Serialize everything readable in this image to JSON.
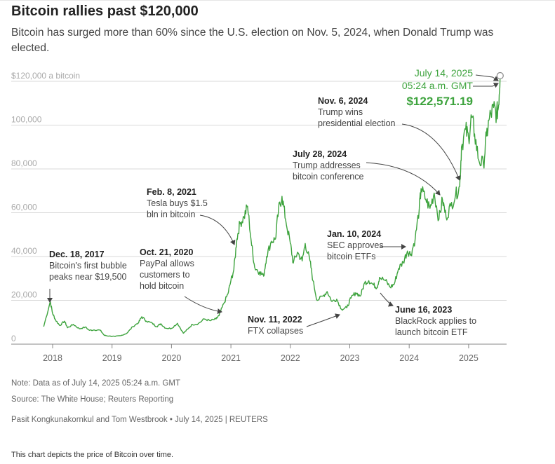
{
  "header": {
    "title": "Bitcoin rallies past $120,000",
    "subtitle": "Bitcoin has surged more than 60% since the U.S. election on Nov. 5, 2024, when Donald Trump was elected."
  },
  "chart_data": {
    "type": "line",
    "title": "Bitcoin rallies past $120,000",
    "series": [
      {
        "name": "Bitcoin price",
        "color": "#3da33d",
        "points": [
          [
            2017.85,
            8000
          ],
          [
            2017.96,
            19500
          ],
          [
            2018.0,
            14000
          ],
          [
            2018.05,
            11000
          ],
          [
            2018.12,
            8500
          ],
          [
            2018.2,
            10500
          ],
          [
            2018.25,
            7500
          ],
          [
            2018.35,
            9000
          ],
          [
            2018.45,
            7000
          ],
          [
            2018.55,
            7800
          ],
          [
            2018.62,
            6300
          ],
          [
            2018.7,
            6500
          ],
          [
            2018.8,
            6400
          ],
          [
            2018.87,
            4000
          ],
          [
            2018.95,
            3700
          ],
          [
            2019.05,
            3500
          ],
          [
            2019.15,
            3900
          ],
          [
            2019.25,
            5000
          ],
          [
            2019.35,
            8000
          ],
          [
            2019.45,
            10000
          ],
          [
            2019.5,
            12500
          ],
          [
            2019.58,
            10500
          ],
          [
            2019.68,
            9500
          ],
          [
            2019.75,
            8000
          ],
          [
            2019.82,
            9300
          ],
          [
            2019.9,
            7300
          ],
          [
            2020.0,
            7200
          ],
          [
            2020.1,
            9500
          ],
          [
            2020.2,
            5000
          ],
          [
            2020.28,
            7000
          ],
          [
            2020.35,
            9000
          ],
          [
            2020.45,
            9300
          ],
          [
            2020.55,
            11500
          ],
          [
            2020.65,
            10700
          ],
          [
            2020.75,
            11500
          ],
          [
            2020.8,
            13000
          ],
          [
            2020.88,
            18500
          ],
          [
            2020.95,
            23000
          ],
          [
            2021.0,
            29000
          ],
          [
            2021.05,
            34000
          ],
          [
            2021.1,
            48000
          ],
          [
            2021.15,
            55000
          ],
          [
            2021.22,
            58000
          ],
          [
            2021.28,
            63000
          ],
          [
            2021.35,
            45000
          ],
          [
            2021.4,
            35000
          ],
          [
            2021.48,
            33000
          ],
          [
            2021.55,
            31000
          ],
          [
            2021.6,
            40000
          ],
          [
            2021.68,
            47000
          ],
          [
            2021.75,
            48000
          ],
          [
            2021.8,
            61000
          ],
          [
            2021.86,
            67500
          ],
          [
            2021.92,
            57000
          ],
          [
            2022.0,
            46000
          ],
          [
            2022.05,
            37000
          ],
          [
            2022.12,
            42000
          ],
          [
            2022.2,
            38000
          ],
          [
            2022.25,
            46000
          ],
          [
            2022.33,
            38000
          ],
          [
            2022.38,
            29000
          ],
          [
            2022.45,
            20000
          ],
          [
            2022.55,
            22000
          ],
          [
            2022.62,
            24000
          ],
          [
            2022.7,
            19500
          ],
          [
            2022.78,
            20500
          ],
          [
            2022.86,
            16000
          ],
          [
            2022.95,
            16600
          ],
          [
            2023.02,
            21000
          ],
          [
            2023.1,
            23500
          ],
          [
            2023.18,
            22000
          ],
          [
            2023.25,
            28000
          ],
          [
            2023.32,
            29000
          ],
          [
            2023.4,
            27000
          ],
          [
            2023.46,
            26000
          ],
          [
            2023.5,
            30500
          ],
          [
            2023.6,
            29000
          ],
          [
            2023.68,
            26000
          ],
          [
            2023.75,
            27500
          ],
          [
            2023.82,
            34500
          ],
          [
            2023.9,
            37500
          ],
          [
            2023.97,
            42500
          ],
          [
            2024.03,
            41000
          ],
          [
            2024.1,
            48000
          ],
          [
            2024.17,
            62000
          ],
          [
            2024.2,
            71000
          ],
          [
            2024.28,
            66000
          ],
          [
            2024.35,
            62000
          ],
          [
            2024.42,
            69000
          ],
          [
            2024.5,
            57000
          ],
          [
            2024.56,
            66000
          ],
          [
            2024.62,
            58000
          ],
          [
            2024.7,
            63000
          ],
          [
            2024.78,
            68000
          ],
          [
            2024.85,
            72000
          ],
          [
            2024.88,
            90000
          ],
          [
            2024.95,
            98000
          ],
          [
            2025.0,
            94000
          ],
          [
            2025.05,
            104000
          ],
          [
            2025.1,
            96000
          ],
          [
            2025.17,
            84000
          ],
          [
            2025.25,
            82000
          ],
          [
            2025.3,
            95000
          ],
          [
            2025.35,
            103000
          ],
          [
            2025.42,
            108000
          ],
          [
            2025.47,
            105000
          ],
          [
            2025.5,
            108000
          ],
          [
            2025.53,
            122571
          ]
        ]
      }
    ],
    "x_ticks": [
      {
        "value": 2018,
        "label": "2018"
      },
      {
        "value": 2019,
        "label": "2019"
      },
      {
        "value": 2020,
        "label": "2020"
      },
      {
        "value": 2021,
        "label": "2021"
      },
      {
        "value": 2022,
        "label": "2022"
      },
      {
        "value": 2023,
        "label": "2023"
      },
      {
        "value": 2024,
        "label": "2024"
      },
      {
        "value": 2025,
        "label": "2025"
      }
    ],
    "y_ticks": [
      {
        "value": 120000,
        "label": "$120,000 a bitcoin"
      },
      {
        "value": 100000,
        "label": "100,000"
      },
      {
        "value": 80000,
        "label": "80,000"
      },
      {
        "value": 60000,
        "label": "60,000"
      },
      {
        "value": 40000,
        "label": "40,000"
      },
      {
        "value": 20000,
        "label": "20,000"
      },
      {
        "value": 0,
        "label": "0"
      }
    ],
    "xlim": [
      2017.0,
      2025.72
    ],
    "ylim": [
      0,
      122000
    ],
    "grid": true,
    "annotations": [
      {
        "id": "dec-2017",
        "date": "Dec. 18, 2017",
        "lines": [
          "Bitcoin's first bubble",
          "peaks near $19,500"
        ]
      },
      {
        "id": "oct-2020",
        "date": "Oct. 21, 2020",
        "lines": [
          "PayPal allows",
          "customers to",
          "hold bitcoin"
        ]
      },
      {
        "id": "feb-2021",
        "date": "Feb. 8, 2021",
        "lines": [
          "Tesla buys $1.5",
          "bln in bitcoin"
        ]
      },
      {
        "id": "nov-2022",
        "date": "Nov. 11, 2022",
        "lines": [
          "FTX collapses"
        ]
      },
      {
        "id": "jun-2023",
        "date": "June 16, 2023",
        "lines": [
          "BlackRock applies to",
          "launch bitcoin ETF"
        ]
      },
      {
        "id": "jan-2024",
        "date": "Jan. 10, 2024",
        "lines": [
          "SEC approves",
          "bitcoin ETFs"
        ]
      },
      {
        "id": "jul-2024",
        "date": "July 28, 2024",
        "lines": [
          "Trump addresses",
          "bitcoin conference"
        ]
      },
      {
        "id": "nov-2024",
        "date": "Nov. 6, 2024",
        "lines": [
          "Trump wins",
          "presidential election"
        ]
      }
    ],
    "latest": {
      "date": "July 14, 2025",
      "time": "05:24 a.m. GMT",
      "price": "$122,571.19",
      "value": 122571.19
    }
  },
  "footer": {
    "note": "Note: Data as of July 14, 2025 05:24 a.m. GMT",
    "source": "Source: The White House; Reuters Reporting",
    "byline": "Pasit Kongkunakornkul and Tom Westbrook • July 14, 2025 | REUTERS",
    "description": "This chart depicts the price of Bitcoin over time."
  }
}
